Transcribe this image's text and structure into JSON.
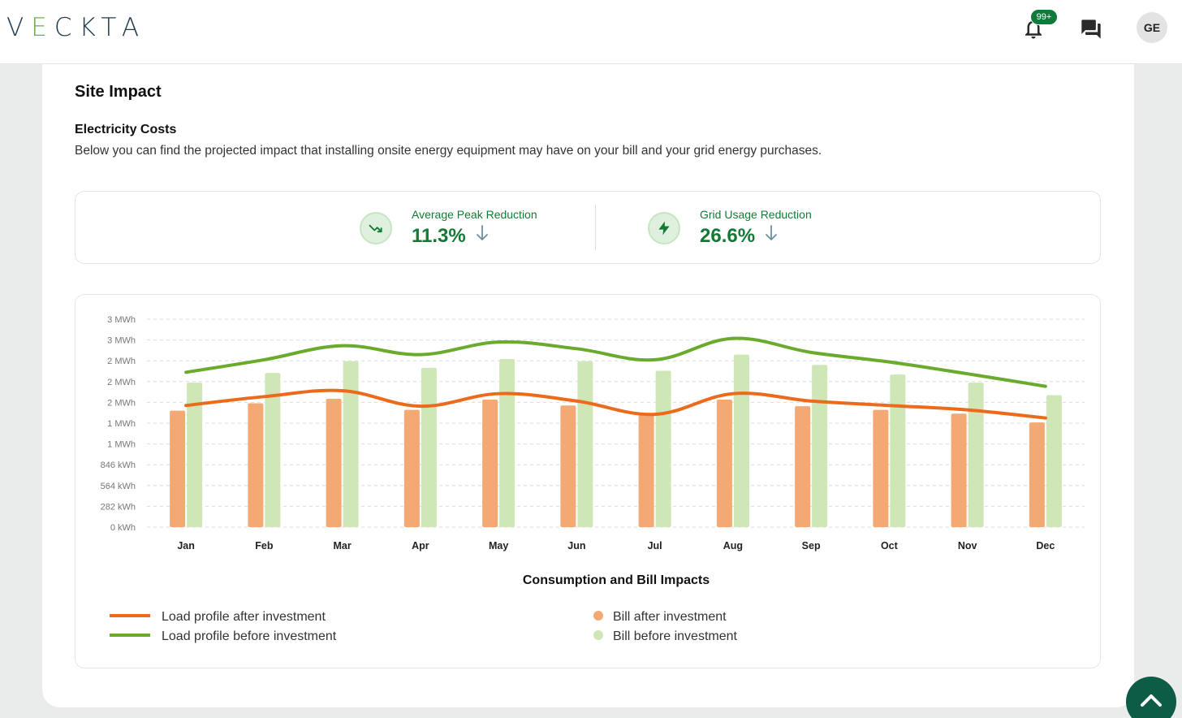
{
  "app": {
    "logo_text_a": "V",
    "logo_text_e": "E",
    "logo_text_b": "CKTA"
  },
  "header": {
    "notification_badge": "99+",
    "avatar_initials": "GE"
  },
  "section": {
    "title": "Site Impact",
    "subtitle": "Electricity Costs",
    "description": "Below you can find the projected impact that installing onsite energy equipment may have on your bill and your grid energy purchases."
  },
  "kpis": [
    {
      "label": "Average Peak Reduction",
      "value": "11.3%"
    },
    {
      "label": "Grid Usage Reduction",
      "value": "26.6%"
    }
  ],
  "colors": {
    "brand_green": "#137a36",
    "line_after": "#ec6a1c",
    "line_before": "#6aaa2c",
    "bar_after": "#f4a873",
    "bar_before": "#cfe6b7"
  },
  "chart_data": {
    "type": "bar",
    "title": "Consumption and Bill Impacts",
    "categories": [
      "Jan",
      "Feb",
      "Mar",
      "Apr",
      "May",
      "Jun",
      "Jul",
      "Aug",
      "Sep",
      "Oct",
      "Nov",
      "Dec"
    ],
    "y_tick_labels": [
      "0 kWh",
      "282 kWh",
      "564 kWh",
      "846 kWh",
      "1 MWh",
      "1 MWh",
      "2 MWh",
      "2 MWh",
      "2 MWh",
      "3 MWh",
      "3 MWh"
    ],
    "ylim": [
      0,
      2820
    ],
    "series": [
      {
        "name": "Bill after investment",
        "kind": "bar",
        "values": [
          1580,
          1680,
          1740,
          1590,
          1730,
          1650,
          1530,
          1730,
          1640,
          1590,
          1540,
          1420
        ]
      },
      {
        "name": "Bill before investment",
        "kind": "bar",
        "values": [
          1960,
          2090,
          2250,
          2160,
          2280,
          2250,
          2120,
          2340,
          2200,
          2070,
          1960,
          1790
        ]
      },
      {
        "name": "Load profile after investment",
        "kind": "line",
        "values": [
          1650,
          1770,
          1850,
          1640,
          1810,
          1710,
          1530,
          1810,
          1710,
          1650,
          1590,
          1480
        ]
      },
      {
        "name": "Load profile before investment",
        "kind": "line",
        "values": [
          2100,
          2270,
          2460,
          2340,
          2510,
          2420,
          2270,
          2560,
          2370,
          2240,
          2080,
          1910
        ]
      }
    ],
    "legend": [
      {
        "label": "Load profile after investment",
        "kind": "line",
        "color": "#ec6a1c"
      },
      {
        "label": "Load profile before investment",
        "kind": "line",
        "color": "#6aaa2c"
      },
      {
        "label": "Bill after investment",
        "kind": "dot",
        "color": "#f4a873"
      },
      {
        "label": "Bill before investment",
        "kind": "dot",
        "color": "#cfe6b7"
      }
    ],
    "legend_position": "bottom"
  }
}
